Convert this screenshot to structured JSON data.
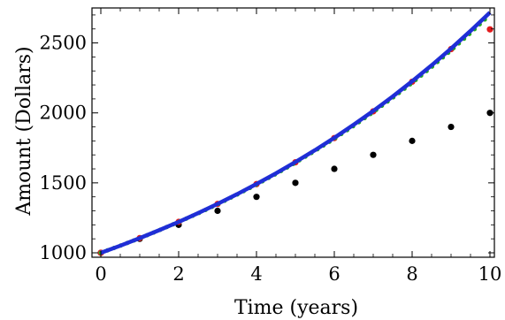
{
  "chart_data": {
    "type": "scatter",
    "xlabel": "Time (years)",
    "ylabel": "Amount (Dollars)",
    "xlim": [
      0,
      10
    ],
    "ylim": [
      1000,
      2750
    ],
    "x_ticks": [
      0,
      2,
      4,
      6,
      8,
      10
    ],
    "x_tick_labels": [
      "0",
      "2",
      "4",
      "6",
      "8",
      "10"
    ],
    "y_ticks": [
      1000,
      1500,
      2000,
      2500
    ],
    "y_tick_labels": [
      "1000",
      "1500",
      "2000",
      "2500"
    ],
    "grid": false,
    "series": [
      {
        "kind": "points",
        "color": "#000000",
        "points": [
          [
            0,
            1000
          ],
          [
            1,
            1100
          ],
          [
            2,
            1200
          ],
          [
            3,
            1300
          ],
          [
            4,
            1400
          ],
          [
            5,
            1500
          ],
          [
            6,
            1600
          ],
          [
            7,
            1700
          ],
          [
            8,
            1800
          ],
          [
            9,
            1900
          ],
          [
            10,
            2000
          ]
        ]
      },
      {
        "kind": "points",
        "color": "#e31a1c",
        "points": [
          [
            0,
            1000
          ],
          [
            1,
            1105
          ],
          [
            2,
            1221
          ],
          [
            3,
            1349
          ],
          [
            4,
            1491
          ],
          [
            5,
            1647
          ],
          [
            6,
            1820
          ],
          [
            7,
            2011
          ],
          [
            8,
            2223
          ],
          [
            9,
            2456
          ],
          [
            10,
            2597
          ]
        ]
      },
      {
        "kind": "dotted-line",
        "color": "#22aa22",
        "points": [
          [
            0,
            1000
          ],
          [
            0.5,
            1051
          ],
          [
            1,
            1104
          ],
          [
            1.5,
            1161
          ],
          [
            2,
            1220
          ],
          [
            2.5,
            1282
          ],
          [
            3,
            1347
          ],
          [
            3.5,
            1416
          ],
          [
            4,
            1488
          ],
          [
            4.5,
            1564
          ],
          [
            5,
            1644
          ],
          [
            5.5,
            1728
          ],
          [
            6,
            1816
          ],
          [
            6.5,
            1908
          ],
          [
            7,
            2006
          ],
          [
            7.5,
            2108
          ],
          [
            8,
            2215
          ],
          [
            8.5,
            2328
          ],
          [
            9,
            2447
          ],
          [
            9.5,
            2571
          ],
          [
            10,
            2702
          ]
        ]
      },
      {
        "kind": "solid-line",
        "color": "#1f2ed6",
        "points": [
          [
            0,
            1000
          ],
          [
            0.5,
            1051
          ],
          [
            1,
            1105
          ],
          [
            1.5,
            1162
          ],
          [
            2,
            1221
          ],
          [
            2.5,
            1284
          ],
          [
            3,
            1350
          ],
          [
            3.5,
            1419
          ],
          [
            4,
            1492
          ],
          [
            4.5,
            1568
          ],
          [
            5,
            1649
          ],
          [
            5.5,
            1733
          ],
          [
            6,
            1822
          ],
          [
            6.5,
            1916
          ],
          [
            7,
            2014
          ],
          [
            7.5,
            2117
          ],
          [
            8,
            2226
          ],
          [
            8.5,
            2340
          ],
          [
            9,
            2460
          ],
          [
            9.5,
            2586
          ],
          [
            10,
            2718
          ]
        ]
      }
    ]
  }
}
